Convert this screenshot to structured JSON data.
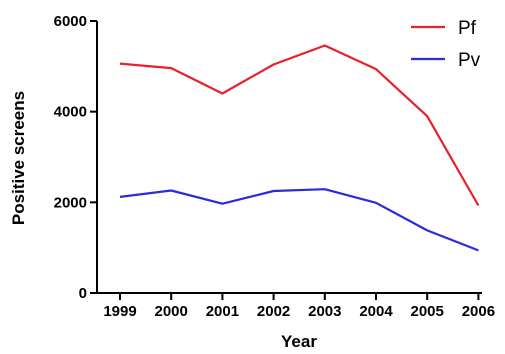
{
  "chart_data": {
    "type": "line",
    "x": [
      1999,
      2000,
      2001,
      2002,
      2003,
      2004,
      2005,
      2006
    ],
    "categories": [
      "1999",
      "2000",
      "2001",
      "2002",
      "2003",
      "2004",
      "2005",
      "2006"
    ],
    "xlabel": "Year",
    "ylabel": "Positive screens",
    "ylim": [
      0,
      6000
    ],
    "yticks": [
      "0",
      "2000",
      "4000",
      "6000"
    ],
    "grid": false,
    "legend_position": "top-right",
    "series": [
      {
        "name": "Pf",
        "color": "#e8202a",
        "values": [
          5060,
          4960,
          4400,
          5040,
          5460,
          4940,
          3900,
          1930
        ]
      },
      {
        "name": "Pv",
        "color": "#2b2bd9",
        "values": [
          2120,
          2260,
          1970,
          2250,
          2290,
          1990,
          1380,
          940
        ]
      }
    ]
  }
}
